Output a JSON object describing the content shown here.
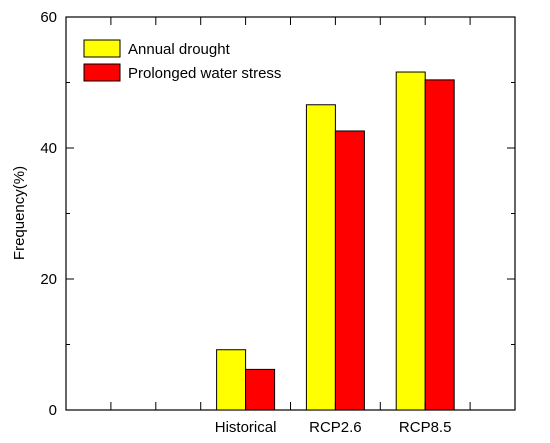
{
  "chart_data": {
    "type": "bar",
    "categories": [
      "Historical",
      "RCP2.6",
      "RCP8.5"
    ],
    "series": [
      {
        "name": "Annual drought",
        "values": [
          9.2,
          46.6,
          51.6
        ],
        "color": "#ffff00"
      },
      {
        "name": "Prolonged water stress",
        "values": [
          6.2,
          42.6,
          50.4
        ],
        "color": "#ff0000"
      }
    ],
    "xlabel": "",
    "ylabel": "Frequency(%)",
    "ylim": [
      0,
      60
    ],
    "yticks": [
      0,
      20,
      40,
      60
    ],
    "grid": false,
    "legend_position": "top-left",
    "bar_edge_color": "#000000"
  }
}
